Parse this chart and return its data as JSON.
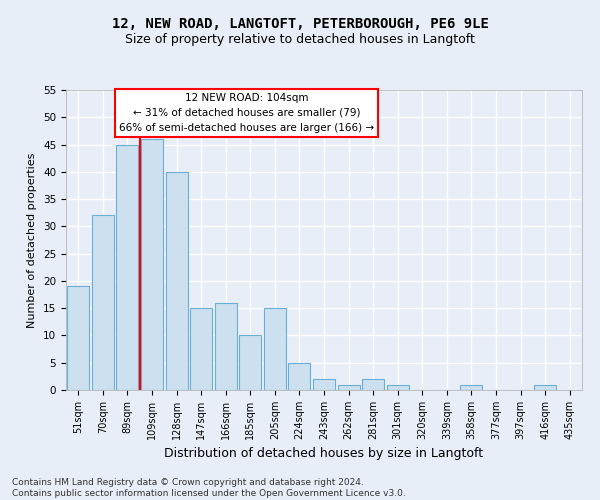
{
  "title1": "12, NEW ROAD, LANGTOFT, PETERBOROUGH, PE6 9LE",
  "title2": "Size of property relative to detached houses in Langtoft",
  "xlabel": "Distribution of detached houses by size in Langtoft",
  "ylabel": "Number of detached properties",
  "footer1": "Contains HM Land Registry data © Crown copyright and database right 2024.",
  "footer2": "Contains public sector information licensed under the Open Government Licence v3.0.",
  "categories": [
    "51sqm",
    "70sqm",
    "89sqm",
    "109sqm",
    "128sqm",
    "147sqm",
    "166sqm",
    "185sqm",
    "205sqm",
    "224sqm",
    "243sqm",
    "262sqm",
    "281sqm",
    "301sqm",
    "320sqm",
    "339sqm",
    "358sqm",
    "377sqm",
    "397sqm",
    "416sqm",
    "435sqm"
  ],
  "values": [
    19,
    32,
    45,
    46,
    40,
    15,
    16,
    10,
    15,
    5,
    2,
    1,
    2,
    1,
    0,
    0,
    1,
    0,
    0,
    1,
    0
  ],
  "bar_color": "#cce0f0",
  "bar_edge_color": "#6baed6",
  "vline_x_index": 3,
  "vline_color": "red",
  "annotation_text_line1": "12 NEW ROAD: 104sqm",
  "annotation_text_line2": "← 31% of detached houses are smaller (79)",
  "annotation_text_line3": "66% of semi-detached houses are larger (166) →",
  "annotation_box_color": "white",
  "annotation_box_edge_color": "red",
  "ylim": [
    0,
    55
  ],
  "yticks": [
    0,
    5,
    10,
    15,
    20,
    25,
    30,
    35,
    40,
    45,
    50,
    55
  ],
  "bg_color": "#e8eef7",
  "grid_color": "white",
  "title1_fontsize": 10,
  "title2_fontsize": 9,
  "ylabel_fontsize": 8,
  "xlabel_fontsize": 9,
  "tick_fontsize": 7,
  "footer_fontsize": 6.5
}
